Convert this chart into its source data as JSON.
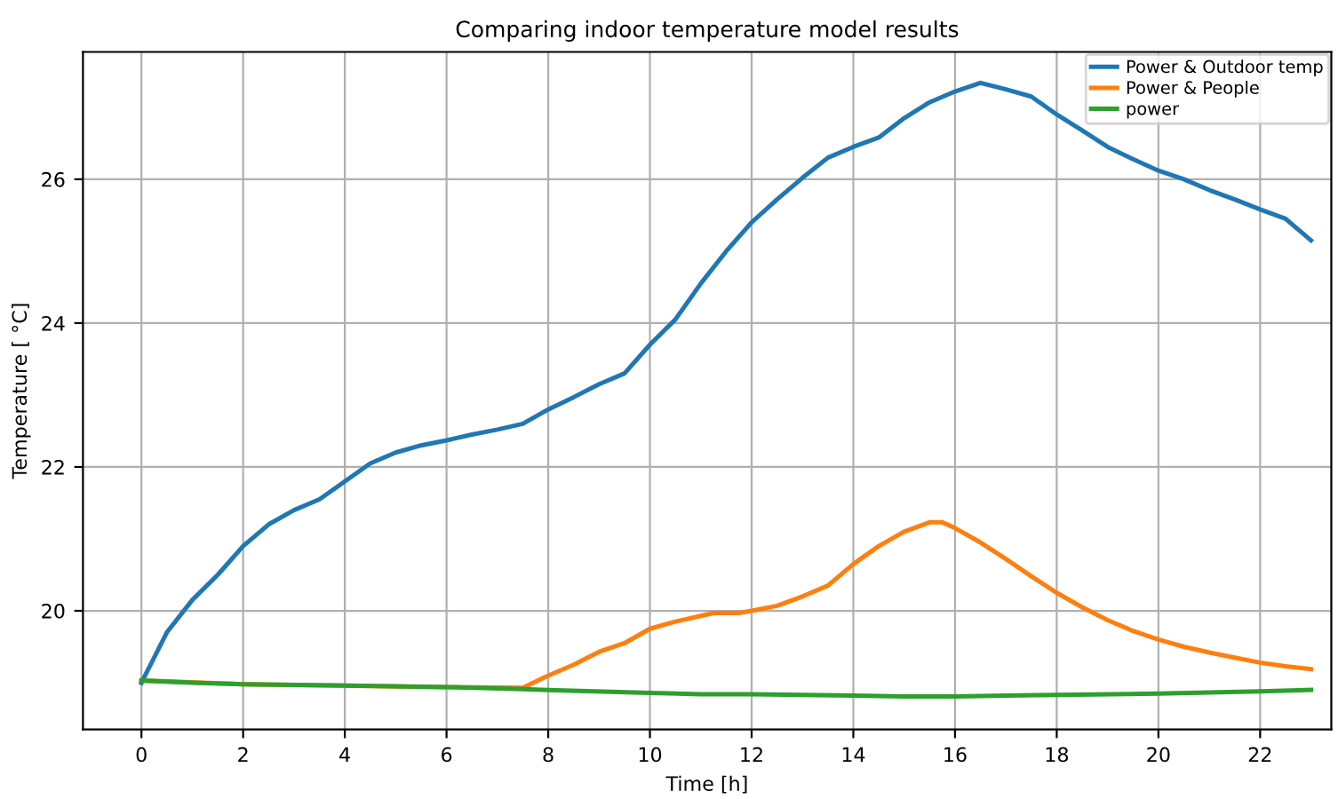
{
  "chart_data": {
    "type": "line",
    "title": "Comparing indoor temperature model results",
    "xlabel": "Time [h]",
    "ylabel": "Temperature [ °C]",
    "xlim": [
      -1.15,
      23.4
    ],
    "ylim": [
      18.35,
      27.77
    ],
    "xticks": [
      0,
      2,
      4,
      6,
      8,
      10,
      12,
      14,
      16,
      18,
      20,
      22
    ],
    "yticks": [
      20,
      22,
      24,
      26
    ],
    "grid": true,
    "legend": "top right",
    "series": [
      {
        "name": "Power & Outdoor temp",
        "color": "#1f77b4",
        "x": [
          0,
          0.5,
          1,
          1.5,
          2,
          2.5,
          3,
          3.5,
          4,
          4.5,
          5,
          5.5,
          6,
          6.5,
          7,
          7.5,
          8,
          8.5,
          9,
          9.5,
          10,
          10.5,
          11,
          11.5,
          12,
          12.5,
          13,
          13.5,
          14,
          14.5,
          15,
          15.5,
          16,
          16.5,
          17,
          17.5,
          18,
          18.5,
          19,
          19.5,
          20,
          20.5,
          21,
          21.5,
          22,
          22.5,
          23
        ],
        "values": [
          19.0,
          19.7,
          20.15,
          20.5,
          20.9,
          21.2,
          21.4,
          21.55,
          21.8,
          22.05,
          22.2,
          22.3,
          22.37,
          22.45,
          22.52,
          22.6,
          22.8,
          22.97,
          23.15,
          23.3,
          23.7,
          24.05,
          24.55,
          25.0,
          25.4,
          25.72,
          26.02,
          26.3,
          26.45,
          26.58,
          26.85,
          27.07,
          27.22,
          27.34,
          27.25,
          27.15,
          26.9,
          26.68,
          26.45,
          26.28,
          26.12,
          26.0,
          25.85,
          25.72,
          25.58,
          25.45,
          25.15
        ]
      },
      {
        "name": "Power & People",
        "color": "#ff7f0e",
        "x": [
          0,
          2,
          4,
          6,
          7.5,
          8,
          8.5,
          9,
          9.5,
          10,
          10.5,
          11,
          11.25,
          11.75,
          12,
          12.5,
          13,
          13.5,
          14,
          14.5,
          15,
          15.5,
          15.75,
          16,
          16.5,
          17,
          17.5,
          18,
          18.5,
          19,
          19.5,
          20,
          20.5,
          21,
          21.5,
          22,
          22.5,
          23
        ],
        "values": [
          19.03,
          18.98,
          18.96,
          18.94,
          18.93,
          19.1,
          19.25,
          19.43,
          19.55,
          19.75,
          19.85,
          19.93,
          19.97,
          19.97,
          20.0,
          20.07,
          20.2,
          20.35,
          20.65,
          20.9,
          21.1,
          21.23,
          21.23,
          21.15,
          20.95,
          20.72,
          20.48,
          20.25,
          20.05,
          19.87,
          19.72,
          19.6,
          19.5,
          19.42,
          19.35,
          19.28,
          19.23,
          19.19
        ]
      },
      {
        "name": "power",
        "color": "#2ca02c",
        "x": [
          0,
          1,
          2,
          4,
          6,
          7.5,
          8,
          10,
          11,
          12,
          14,
          15,
          16,
          17,
          18,
          20,
          22,
          23
        ],
        "values": [
          19.03,
          19.0,
          18.98,
          18.96,
          18.94,
          18.91,
          18.9,
          18.86,
          18.84,
          18.84,
          18.82,
          18.81,
          18.81,
          18.82,
          18.83,
          18.85,
          18.88,
          18.9
        ]
      }
    ]
  }
}
